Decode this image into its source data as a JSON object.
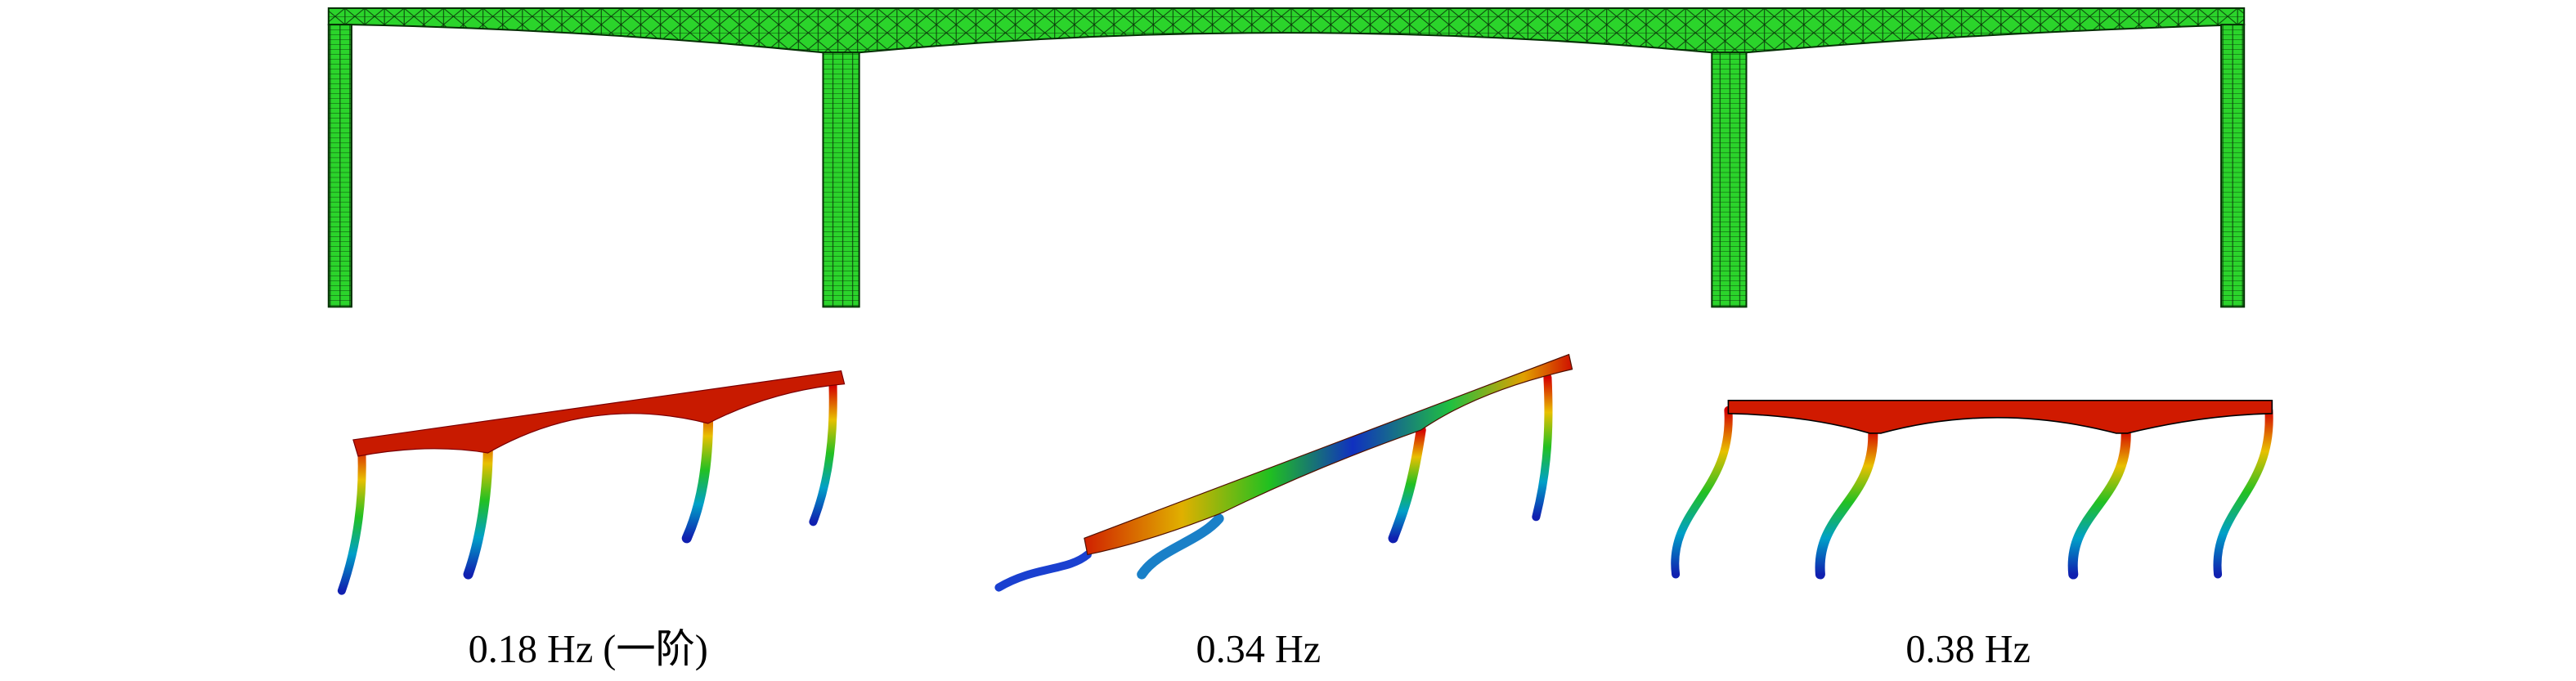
{
  "mode_shapes": [
    {
      "caption": "0.18 Hz (一阶)"
    },
    {
      "caption": "0.34 Hz"
    },
    {
      "caption": "0.38 Hz"
    }
  ]
}
